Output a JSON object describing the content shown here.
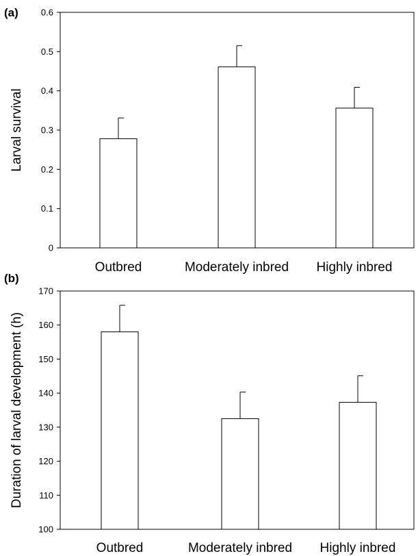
{
  "chart_data": [
    {
      "panel_label": "(a)",
      "type": "bar",
      "categories": [
        "Outbred",
        "Moderately inbred",
        "Highly inbred"
      ],
      "values": [
        0.278,
        0.461,
        0.356
      ],
      "errors": [
        0.053,
        0.054,
        0.053
      ],
      "ylabel": "Larval survival",
      "xlabel": "",
      "ylim": [
        0,
        0.6
      ],
      "yticks": [
        "0",
        "0.1",
        "0.2",
        "0.3",
        "0.4",
        "0.5",
        "0.6"
      ],
      "ytick_values": [
        0,
        0.1,
        0.2,
        0.3,
        0.4,
        0.5,
        0.6
      ],
      "grid": false
    },
    {
      "panel_label": "(b)",
      "type": "bar",
      "categories": [
        "Outbred",
        "Moderately inbred",
        "Highly inbred"
      ],
      "values": [
        158.0,
        132.5,
        137.3
      ],
      "errors": [
        7.8,
        7.8,
        7.8
      ],
      "ylabel": "Duration of larval development (h)",
      "xlabel": "",
      "ylim": [
        100,
        170
      ],
      "yticks": [
        "100",
        "110",
        "120",
        "130",
        "140",
        "150",
        "160",
        "170"
      ],
      "ytick_values": [
        100,
        110,
        120,
        130,
        140,
        150,
        160,
        170
      ],
      "grid": false
    }
  ]
}
